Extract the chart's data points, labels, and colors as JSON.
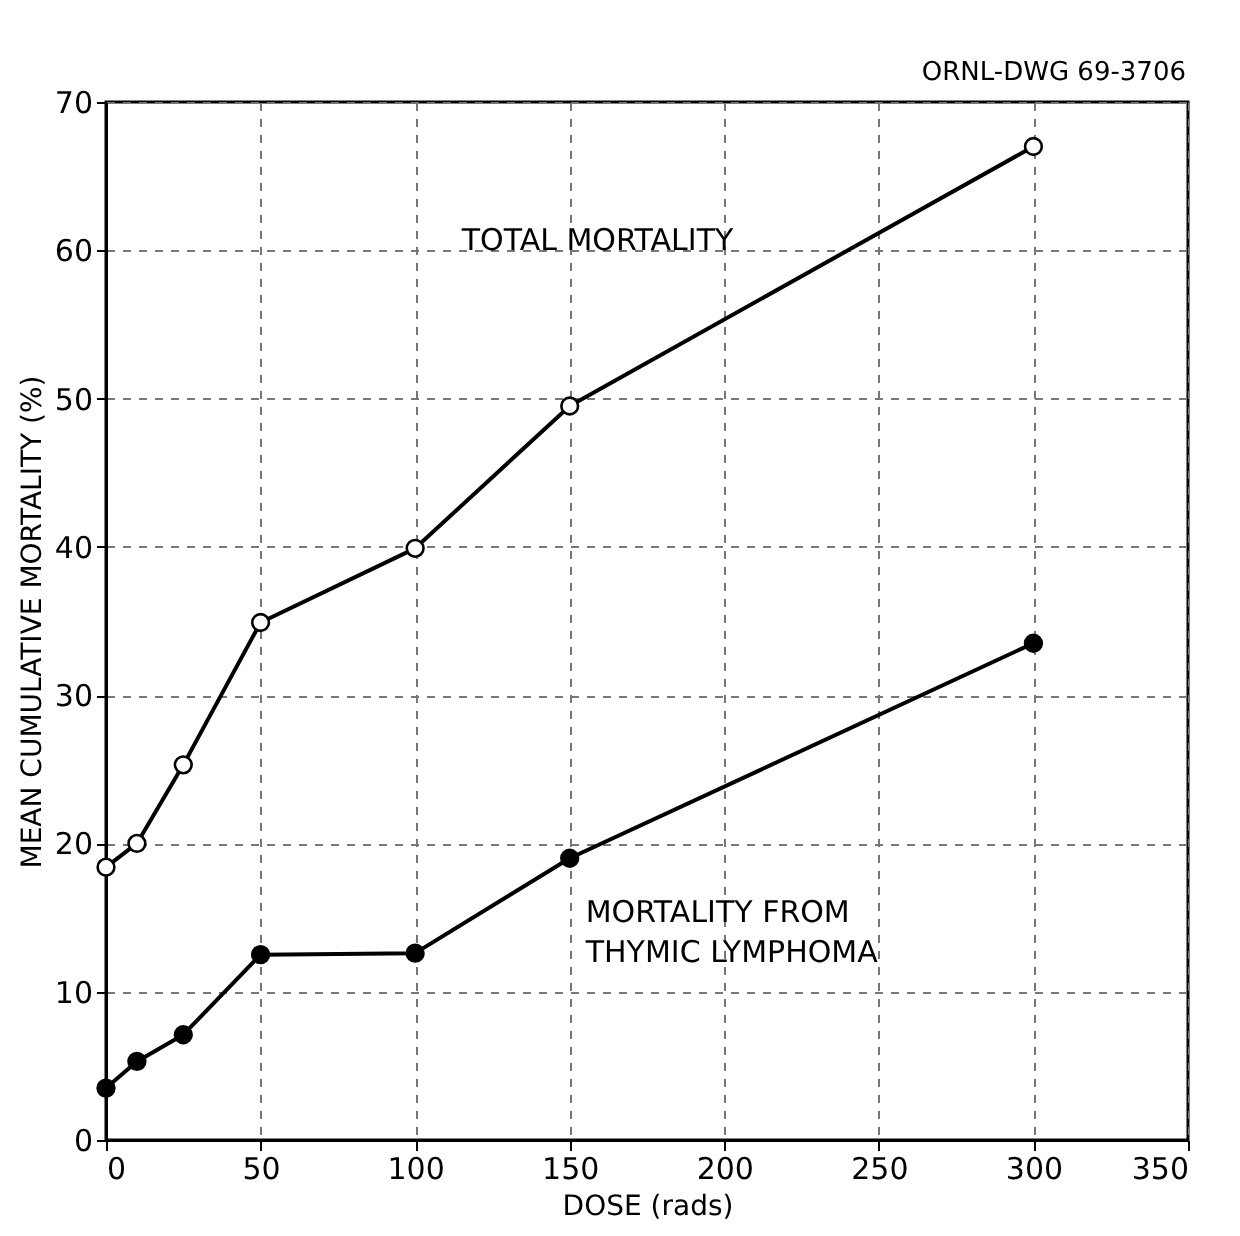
{
  "chart_data": {
    "type": "line",
    "xlabel": "DOSE (rads)",
    "ylabel": "MEAN CUMULATIVE MORTALITY (%)",
    "x": [
      0,
      10,
      25,
      50,
      100,
      150,
      300
    ],
    "series": [
      {
        "name": "TOTAL MORTALITY",
        "color": "#000000",
        "values": [
          18.4,
          20.0,
          25.3,
          34.9,
          39.9,
          49.5,
          67.0
        ]
      },
      {
        "name": "MORTALITY FROM\nTHYMIC LYMPHOMA",
        "color": "#000000",
        "values": [
          3.5,
          5.3,
          7.1,
          12.5,
          12.6,
          19.0,
          33.5
        ]
      }
    ],
    "xlim": [
      0,
      350
    ],
    "xticks": [
      0,
      50,
      100,
      150,
      200,
      250,
      300,
      350
    ],
    "ylim": [
      0,
      70
    ],
    "yticks": [
      0,
      10,
      20,
      30,
      40,
      50,
      60,
      70
    ],
    "grid": true,
    "marker": "circle",
    "line_style": "solid",
    "annotations": [
      "ORNL-DWG 69-3706"
    ]
  }
}
